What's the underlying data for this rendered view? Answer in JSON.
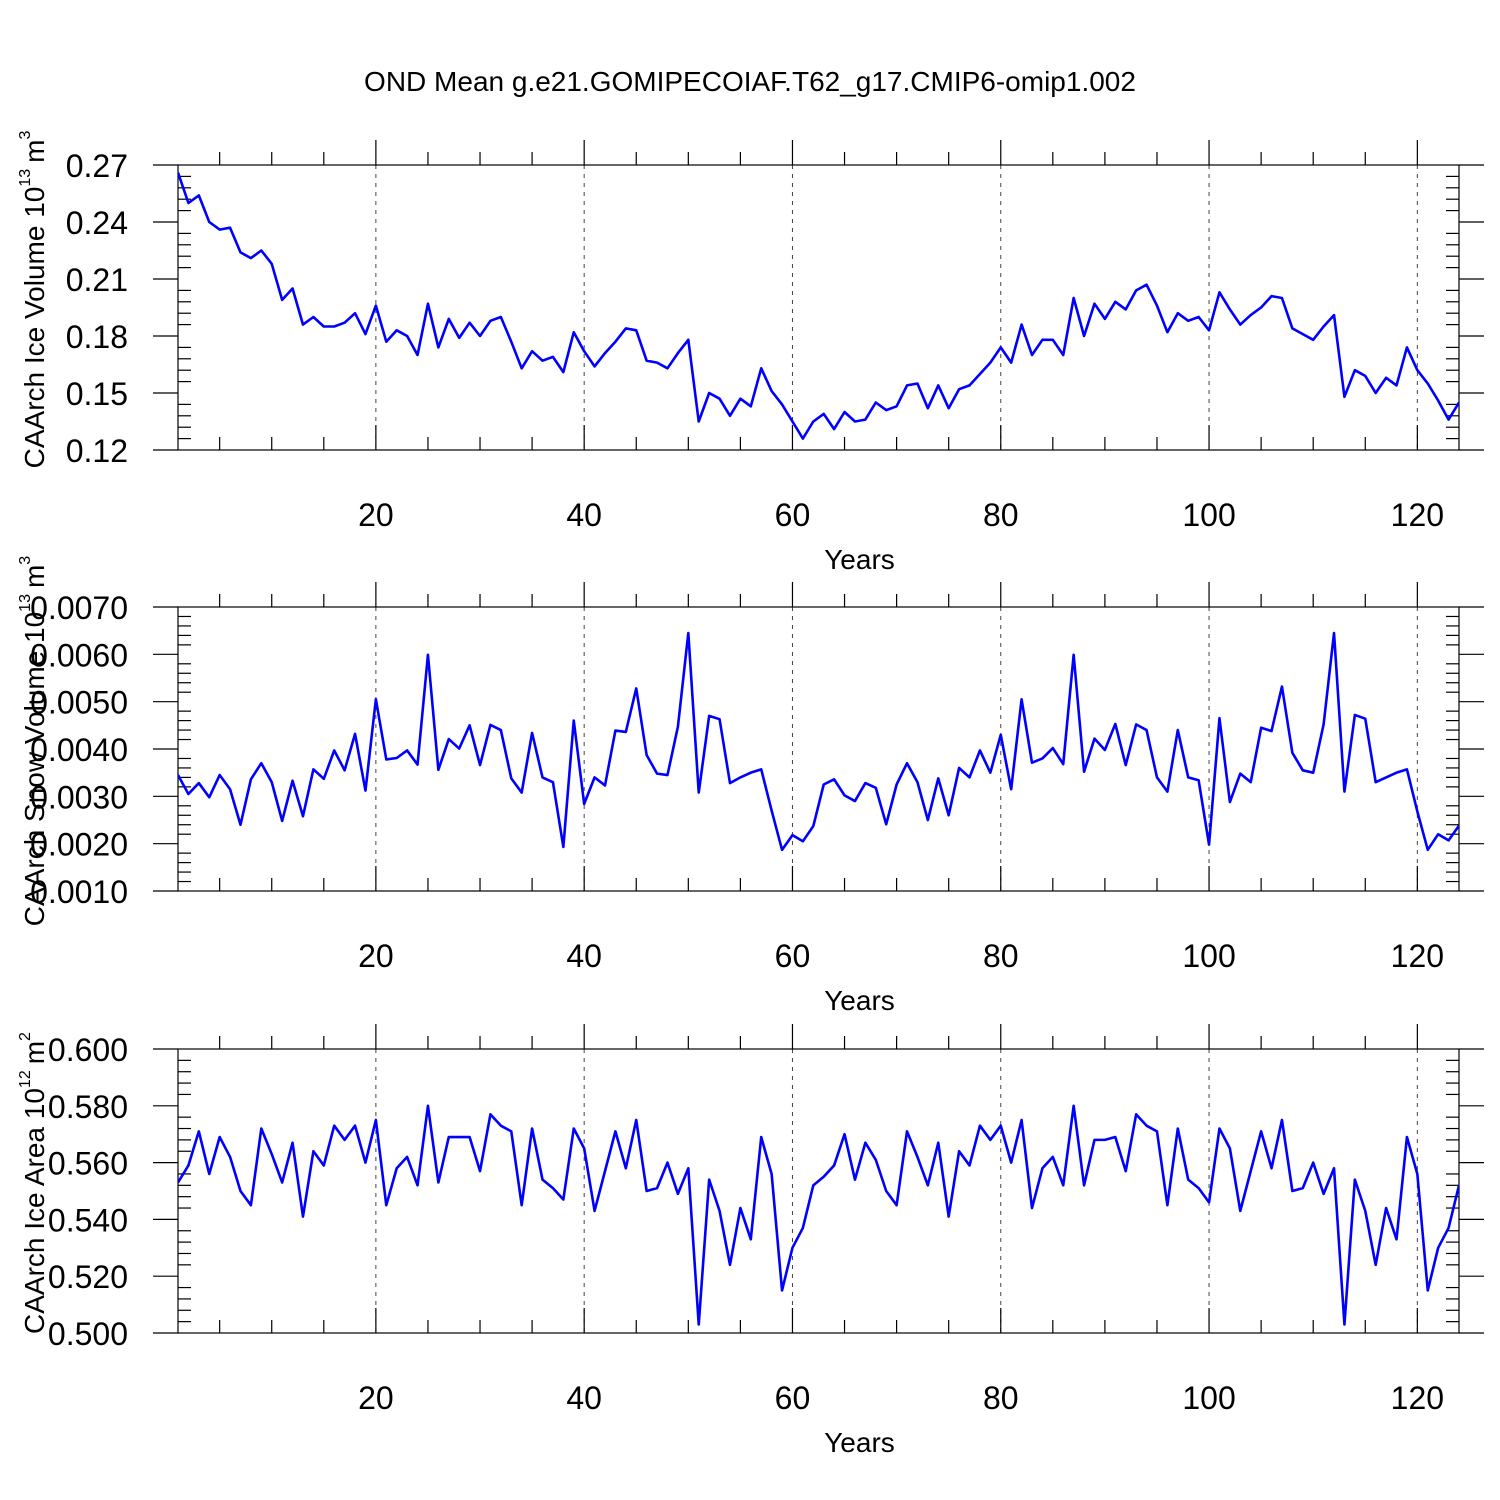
{
  "title": "OND Mean g.e21.GOMIPECOIAF.T62_g17.CMIP6-omip1.002",
  "colors": {
    "line": "#0000ff",
    "axis": "#000000"
  },
  "chart_data": [
    {
      "type": "line",
      "ylabel": "CAArch Ice Volume 10",
      "ylabel_exp": "13",
      "ylabel_unit": "m",
      "ylabel_unit_exp": "3",
      "xlabel": "Years",
      "xlim": [
        1,
        124
      ],
      "ylim": [
        0.12,
        0.27
      ],
      "xticks": [
        20,
        40,
        60,
        80,
        100,
        120
      ],
      "yticks": [
        0.12,
        0.15,
        0.18,
        0.21,
        0.24,
        0.27
      ],
      "ytick_labels": [
        "0.12",
        "0.15",
        "0.18",
        "0.21",
        "0.24",
        "0.27"
      ],
      "grid_x": true,
      "x_start": 1,
      "values": [
        0.266,
        0.25,
        0.254,
        0.24,
        0.236,
        0.237,
        0.224,
        0.221,
        0.225,
        0.218,
        0.199,
        0.205,
        0.186,
        0.19,
        0.185,
        0.185,
        0.187,
        0.192,
        0.181,
        0.196,
        0.177,
        0.183,
        0.18,
        0.17,
        0.197,
        0.174,
        0.189,
        0.179,
        0.187,
        0.18,
        0.188,
        0.19,
        0.177,
        0.163,
        0.172,
        0.167,
        0.169,
        0.161,
        0.182,
        0.172,
        0.164,
        0.171,
        0.177,
        0.184,
        0.183,
        0.167,
        0.166,
        0.163,
        0.171,
        0.178,
        0.135,
        0.15,
        0.147,
        0.138,
        0.147,
        0.143,
        0.163,
        0.151,
        0.144,
        0.135,
        0.126,
        0.135,
        0.139,
        0.131,
        0.14,
        0.135,
        0.136,
        0.145,
        0.141,
        0.143,
        0.154,
        0.155,
        0.142,
        0.154,
        0.142,
        0.152,
        0.154,
        0.16,
        0.166,
        0.174,
        0.166,
        0.186,
        0.17,
        0.178,
        0.178,
        0.17,
        0.2,
        0.18,
        0.197,
        0.189,
        0.198,
        0.194,
        0.204,
        0.207,
        0.196,
        0.182,
        0.192,
        0.188,
        0.19,
        0.183,
        0.203,
        0.194,
        0.186,
        0.191,
        0.195,
        0.201,
        0.2,
        0.184,
        0.181,
        0.178,
        0.185,
        0.191,
        0.148,
        0.162,
        0.159,
        0.15,
        0.158,
        0.154,
        0.174,
        0.162,
        0.155,
        0.146,
        0.136,
        0.145
      ]
    },
    {
      "type": "line",
      "ylabel": "CAArch Snow Volume 10",
      "ylabel_exp": "13",
      "ylabel_unit": "m",
      "ylabel_unit_exp": "3",
      "xlabel": "Years",
      "xlim": [
        1,
        124
      ],
      "ylim": [
        0.001,
        0.007
      ],
      "xticks": [
        20,
        40,
        60,
        80,
        100,
        120
      ],
      "yticks": [
        0.001,
        0.002,
        0.003,
        0.004,
        0.005,
        0.006,
        0.007
      ],
      "ytick_labels": [
        "0.0010",
        "0.0020",
        "0.0030",
        "0.0040",
        "0.0050",
        "0.0060",
        "0.0070"
      ],
      "grid_x": true,
      "x_start": 1,
      "values": [
        0.00345,
        0.00305,
        0.00328,
        0.00298,
        0.00345,
        0.00315,
        0.0024,
        0.00336,
        0.0037,
        0.0033,
        0.00248,
        0.00333,
        0.00258,
        0.00357,
        0.00337,
        0.00397,
        0.00355,
        0.00432,
        0.00312,
        0.00505,
        0.00378,
        0.00381,
        0.00397,
        0.00367,
        0.00599,
        0.00356,
        0.00421,
        0.00401,
        0.0045,
        0.00366,
        0.00451,
        0.0044,
        0.00338,
        0.00308,
        0.00434,
        0.0034,
        0.0033,
        0.00193,
        0.0046,
        0.00284,
        0.0034,
        0.00323,
        0.00439,
        0.00436,
        0.00528,
        0.00387,
        0.00348,
        0.00345,
        0.00447,
        0.00645,
        0.00308,
        0.0047,
        0.00463,
        0.00328,
        0.0034,
        0.0035,
        0.00357,
        0.0027,
        0.00187,
        0.00218,
        0.00205,
        0.00237,
        0.00325,
        0.00336,
        0.00302,
        0.0029,
        0.00328,
        0.00318,
        0.00241,
        0.00325,
        0.0037,
        0.0033,
        0.0025,
        0.00338,
        0.0026,
        0.0036,
        0.0034,
        0.00397,
        0.0035,
        0.0043,
        0.00315,
        0.00505,
        0.00371,
        0.0038,
        0.00402,
        0.00368,
        0.00599,
        0.00352,
        0.00422,
        0.00398,
        0.00453,
        0.00366,
        0.00452,
        0.0044,
        0.0034,
        0.0031,
        0.0044,
        0.0034,
        0.00334,
        0.00198,
        0.00465,
        0.00288,
        0.00348,
        0.0033,
        0.00445,
        0.00438,
        0.00532,
        0.00392,
        0.00355,
        0.0035,
        0.00452,
        0.00645,
        0.0031,
        0.00472,
        0.00464,
        0.0033,
        0.0034,
        0.0035,
        0.00357,
        0.00268,
        0.00187,
        0.0022,
        0.00207,
        0.00238
      ]
    },
    {
      "type": "line",
      "ylabel": "CAArch Ice Area 10",
      "ylabel_exp": "12",
      "ylabel_unit": "m",
      "ylabel_unit_exp": "2",
      "xlabel": "Years",
      "xlim": [
        1,
        124
      ],
      "ylim": [
        0.5,
        0.6
      ],
      "xticks": [
        20,
        40,
        60,
        80,
        100,
        120
      ],
      "yticks": [
        0.5,
        0.52,
        0.54,
        0.56,
        0.58,
        0.6
      ],
      "ytick_labels": [
        "0.500",
        "0.520",
        "0.540",
        "0.560",
        "0.580",
        "0.600"
      ],
      "grid_x": true,
      "x_start": 1,
      "values": [
        0.553,
        0.559,
        0.571,
        0.556,
        0.569,
        0.562,
        0.55,
        0.545,
        0.572,
        0.563,
        0.553,
        0.567,
        0.541,
        0.564,
        0.559,
        0.573,
        0.568,
        0.573,
        0.56,
        0.575,
        0.545,
        0.558,
        0.562,
        0.552,
        0.58,
        0.553,
        0.569,
        0.569,
        0.569,
        0.557,
        0.577,
        0.573,
        0.571,
        0.545,
        0.572,
        0.554,
        0.551,
        0.547,
        0.572,
        0.565,
        0.543,
        0.557,
        0.571,
        0.558,
        0.575,
        0.55,
        0.551,
        0.56,
        0.549,
        0.558,
        0.503,
        0.554,
        0.543,
        0.524,
        0.544,
        0.533,
        0.569,
        0.556,
        0.515,
        0.53,
        0.537,
        0.552,
        0.555,
        0.559,
        0.57,
        0.554,
        0.567,
        0.561,
        0.55,
        0.545,
        0.571,
        0.562,
        0.552,
        0.567,
        0.541,
        0.564,
        0.559,
        0.573,
        0.568,
        0.573,
        0.56,
        0.575,
        0.544,
        0.558,
        0.562,
        0.552,
        0.58,
        0.552,
        0.568,
        0.568,
        0.569,
        0.557,
        0.577,
        0.573,
        0.571,
        0.545,
        0.572,
        0.554,
        0.551,
        0.546,
        0.572,
        0.565,
        0.543,
        0.557,
        0.571,
        0.558,
        0.575,
        0.55,
        0.551,
        0.56,
        0.549,
        0.558,
        0.503,
        0.554,
        0.543,
        0.524,
        0.544,
        0.533,
        0.569,
        0.556,
        0.515,
        0.53,
        0.537,
        0.552
      ]
    }
  ]
}
